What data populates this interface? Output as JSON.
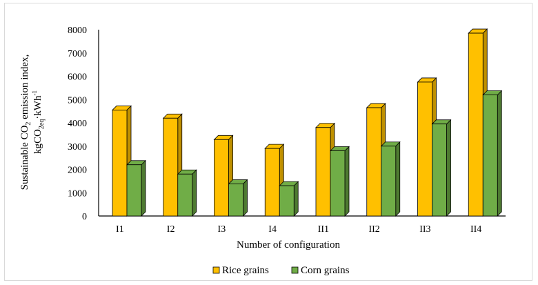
{
  "chart_data": {
    "type": "bar",
    "style": "3d-clustered-column",
    "categories": [
      "I1",
      "I2",
      "I3",
      "I4",
      "II1",
      "II2",
      "II3",
      "II4"
    ],
    "series": [
      {
        "name": "Rice grains",
        "values": [
          4550,
          4200,
          3280,
          2900,
          3800,
          4650,
          5750,
          7850
        ],
        "color": "#FFC000",
        "side_color": "#BF9000"
      },
      {
        "name": "Corn grains",
        "values": [
          2200,
          1800,
          1380,
          1300,
          2800,
          3000,
          3950,
          5200
        ],
        "color": "#70AD47",
        "side_color": "#4E7A31"
      }
    ],
    "ylim": [
      0,
      8000
    ],
    "yticks": [
      0,
      1000,
      2000,
      3000,
      4000,
      5000,
      6000,
      7000,
      8000
    ],
    "xlabel": "Number of configuration",
    "ylabel_line1": "Sustainable CO",
    "ylabel_line1_sub": "2",
    "ylabel_line1_tail": " emission index,",
    "ylabel_line2": "kgCO",
    "ylabel_line2_sub": "2eq",
    "ylabel_line2_tail": "·kWh",
    "ylabel_line2_sup": "-1",
    "grid": false,
    "legend_position": "bottom"
  }
}
